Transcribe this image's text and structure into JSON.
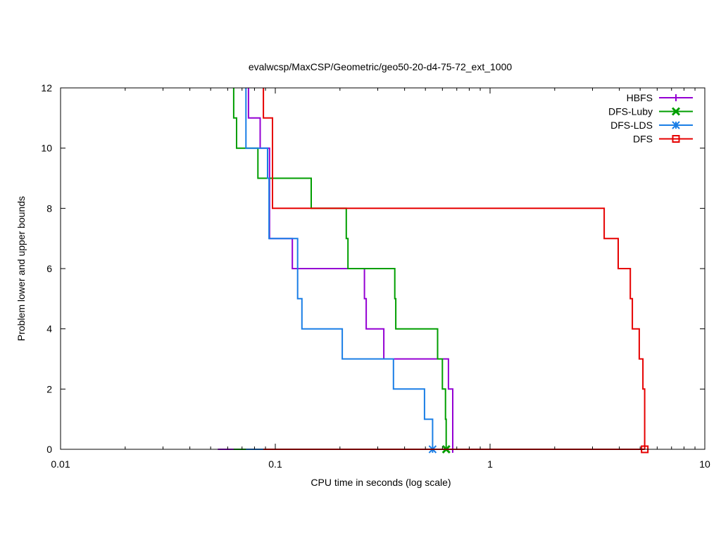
{
  "chart_data": {
    "type": "line",
    "title": "evalwcsp/MaxCSP/Geometric/geo50-20-d4-75-72_ext_1000",
    "xlabel": "CPU time in seconds (log scale)",
    "ylabel": "Problem lower and upper bounds",
    "xscale": "log",
    "xlim": [
      0.01,
      10
    ],
    "ylim": [
      0,
      12
    ],
    "xticks": [
      {
        "value": 0.01,
        "label": "0.01"
      },
      {
        "value": 0.1,
        "label": "0.1"
      },
      {
        "value": 1,
        "label": "1"
      },
      {
        "value": 10,
        "label": "10"
      }
    ],
    "yticks": [
      {
        "value": 0,
        "label": "0"
      },
      {
        "value": 2,
        "label": "2"
      },
      {
        "value": 4,
        "label": "4"
      },
      {
        "value": 6,
        "label": "6"
      },
      {
        "value": 8,
        "label": "8"
      },
      {
        "value": 10,
        "label": "10"
      },
      {
        "value": 12,
        "label": "12"
      }
    ],
    "legend_position": "top-right",
    "series": [
      {
        "name": "HBFS",
        "color": "#9400d3",
        "marker": "plus",
        "upper": [
          [
            0.075,
            12
          ],
          [
            0.075,
            11
          ],
          [
            0.085,
            11
          ],
          [
            0.085,
            10
          ],
          [
            0.094,
            10
          ],
          [
            0.094,
            7
          ],
          [
            0.12,
            7
          ],
          [
            0.12,
            6
          ],
          [
            0.26,
            6
          ],
          [
            0.26,
            5
          ],
          [
            0.265,
            5
          ],
          [
            0.265,
            4
          ],
          [
            0.32,
            4
          ],
          [
            0.32,
            3
          ],
          [
            0.64,
            3
          ],
          [
            0.64,
            2
          ],
          [
            0.67,
            2
          ],
          [
            0.67,
            0
          ]
        ],
        "lower": [
          [
            0.054,
            0
          ],
          [
            0.67,
            0
          ]
        ],
        "end_point": [
          0.67,
          0
        ]
      },
      {
        "name": "DFS-Luby",
        "color": "#009e00",
        "marker": "x",
        "upper": [
          [
            0.064,
            12
          ],
          [
            0.064,
            11
          ],
          [
            0.066,
            11
          ],
          [
            0.066,
            10
          ],
          [
            0.083,
            10
          ],
          [
            0.083,
            9
          ],
          [
            0.147,
            9
          ],
          [
            0.147,
            8
          ],
          [
            0.214,
            8
          ],
          [
            0.214,
            7
          ],
          [
            0.218,
            7
          ],
          [
            0.218,
            6
          ],
          [
            0.36,
            6
          ],
          [
            0.36,
            5
          ],
          [
            0.364,
            5
          ],
          [
            0.364,
            4
          ],
          [
            0.57,
            4
          ],
          [
            0.57,
            3
          ],
          [
            0.6,
            3
          ],
          [
            0.6,
            2
          ],
          [
            0.62,
            2
          ],
          [
            0.62,
            1
          ],
          [
            0.625,
            1
          ],
          [
            0.625,
            0
          ]
        ],
        "lower": [
          [
            0.064,
            0
          ],
          [
            0.625,
            0
          ]
        ],
        "end_point": [
          0.625,
          0
        ]
      },
      {
        "name": "DFS-LDS",
        "color": "#1a7ee6",
        "marker": "star",
        "upper": [
          [
            0.073,
            12
          ],
          [
            0.073,
            10
          ],
          [
            0.092,
            10
          ],
          [
            0.092,
            9
          ],
          [
            0.0935,
            9
          ],
          [
            0.0935,
            7
          ],
          [
            0.127,
            7
          ],
          [
            0.127,
            5
          ],
          [
            0.133,
            5
          ],
          [
            0.133,
            4
          ],
          [
            0.205,
            4
          ],
          [
            0.205,
            3
          ],
          [
            0.355,
            3
          ],
          [
            0.355,
            2
          ],
          [
            0.495,
            2
          ],
          [
            0.495,
            1
          ],
          [
            0.54,
            1
          ],
          [
            0.54,
            0
          ]
        ],
        "lower": [
          [
            0.073,
            0
          ],
          [
            0.54,
            0
          ]
        ],
        "end_point": [
          0.54,
          0
        ]
      },
      {
        "name": "DFS",
        "color": "#e60000",
        "marker": "square",
        "upper": [
          [
            0.088,
            12
          ],
          [
            0.088,
            11
          ],
          [
            0.097,
            11
          ],
          [
            0.097,
            10
          ],
          [
            0.097,
            10
          ],
          [
            0.097,
            8
          ],
          [
            3.4,
            8
          ],
          [
            3.4,
            7
          ],
          [
            3.95,
            7
          ],
          [
            3.95,
            6
          ],
          [
            4.5,
            6
          ],
          [
            4.5,
            5
          ],
          [
            4.6,
            5
          ],
          [
            4.6,
            4
          ],
          [
            4.95,
            4
          ],
          [
            4.95,
            3
          ],
          [
            5.15,
            3
          ],
          [
            5.15,
            2
          ],
          [
            5.25,
            2
          ],
          [
            5.25,
            0
          ]
        ],
        "lower": [
          [
            0.088,
            0
          ],
          [
            5.25,
            0
          ]
        ],
        "end_point": [
          5.25,
          0
        ]
      }
    ]
  }
}
